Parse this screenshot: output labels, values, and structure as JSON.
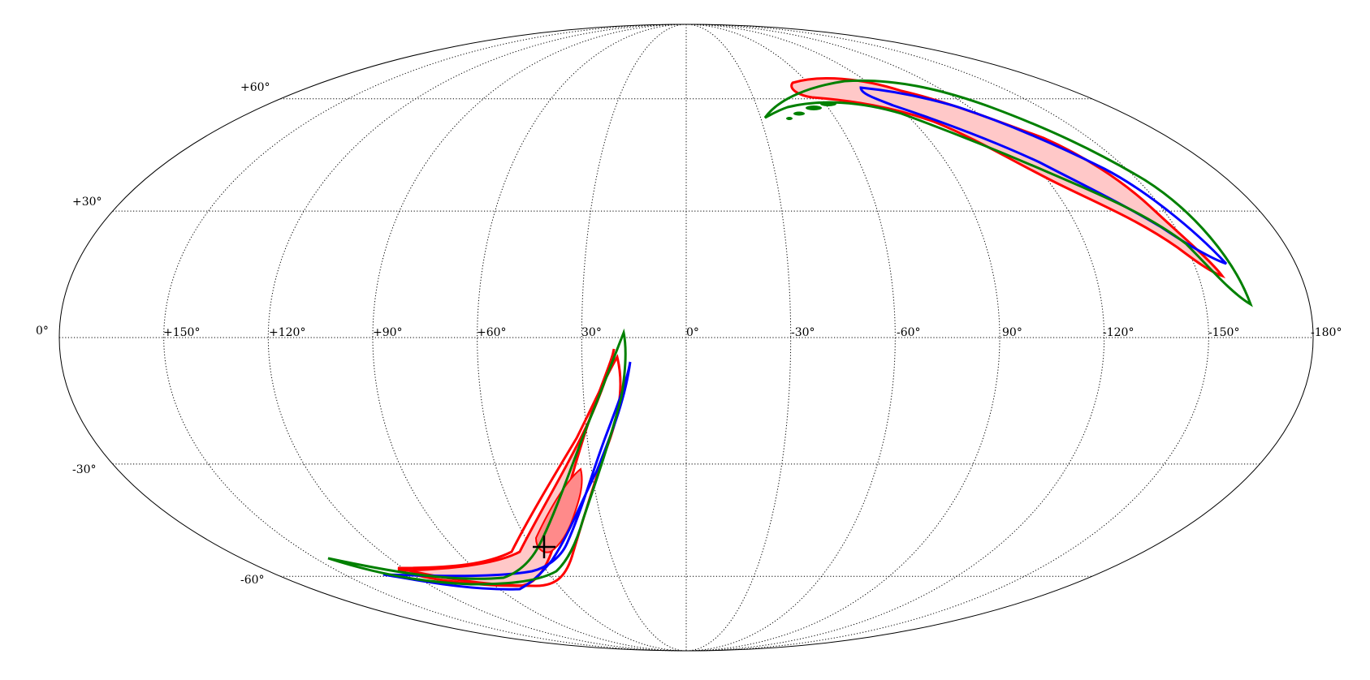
{
  "map": {
    "projection": "mollweide",
    "grid": true,
    "latitude_labels": [
      "+60°",
      "+30°",
      "0°",
      "-30°",
      "-60°"
    ],
    "longitude_labels": [
      "+150°",
      "+120°",
      "+90°",
      "+60°",
      "30°",
      "0°",
      "-30°",
      "-60°",
      "90°",
      "-120°",
      "-150°",
      "-180°"
    ],
    "colors": {
      "red": "#ff0000",
      "blue": "#0000ff",
      "green": "#008000",
      "red_fill_light": "#ffc8c8",
      "red_fill_dark": "#ff8a8a",
      "graticule": "#000000"
    },
    "marker": {
      "type": "cross",
      "lon_deg": 41,
      "lat_deg": -53
    },
    "regions": [
      {
        "id": "north-arc",
        "lon_range_deg": [
          -20,
          -160
        ],
        "lat_range_deg": [
          68,
          10
        ]
      },
      {
        "id": "south-arc",
        "lon_range_deg": [
          115,
          20
        ],
        "lat_range_deg": [
          -70,
          2
        ]
      }
    ]
  }
}
